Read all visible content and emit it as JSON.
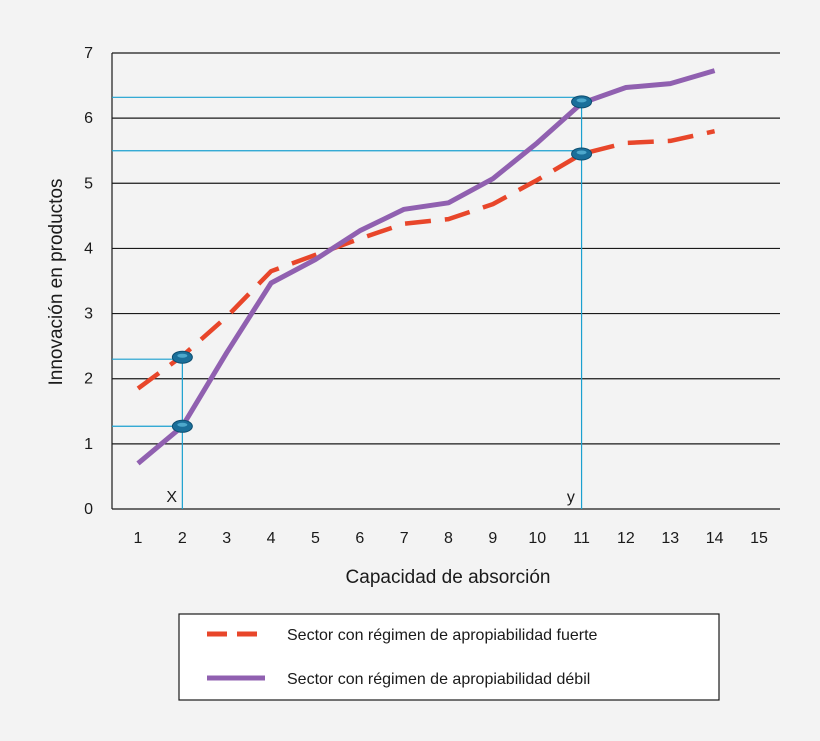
{
  "chart_data": {
    "type": "line",
    "title": "",
    "xlabel": "Capacidad de absorción",
    "ylabel": "Innovación en productos",
    "xlim": [
      0.5,
      15.5
    ],
    "ylim": [
      0,
      7
    ],
    "x_ticks": [
      1,
      2,
      3,
      4,
      5,
      6,
      7,
      8,
      9,
      10,
      11,
      12,
      13,
      14,
      15
    ],
    "y_ticks": [
      0,
      1,
      2,
      3,
      4,
      5,
      6,
      7
    ],
    "grid": "horizontal",
    "legend_position": "bottom",
    "series": [
      {
        "name": "Sector con régimen de apropiabilidad fuerte",
        "style": "dashed",
        "color": "#e8462a",
        "x": [
          1,
          2,
          3,
          4,
          5,
          6,
          7,
          8,
          9,
          10,
          11,
          12,
          13,
          14
        ],
        "y": [
          1.85,
          2.35,
          2.95,
          3.65,
          3.9,
          4.15,
          4.38,
          4.45,
          4.68,
          5.05,
          5.45,
          5.62,
          5.65,
          5.8
        ]
      },
      {
        "name": "Sector con régimen de apropiabilidad débil",
        "style": "solid",
        "color": "#9060b0",
        "x": [
          1,
          2,
          3,
          4,
          5,
          6,
          7,
          8,
          9,
          10,
          11,
          12,
          13,
          14
        ],
        "y": [
          0.7,
          1.27,
          2.4,
          3.47,
          3.83,
          4.27,
          4.6,
          4.7,
          5.07,
          5.62,
          6.23,
          6.47,
          6.53,
          6.73
        ]
      }
    ],
    "reference_lines": {
      "color": "#1aa0cf",
      "marker_color": "#1a6f9a",
      "vertical_x": [
        2,
        11
      ],
      "horizontal_y": [
        2.3,
        1.27,
        6.32,
        5.5
      ],
      "points": [
        {
          "x": 2,
          "y": 2.33
        },
        {
          "x": 2,
          "y": 1.27
        },
        {
          "x": 11,
          "y": 6.25
        },
        {
          "x": 11,
          "y": 5.45
        }
      ]
    },
    "annotations": [
      {
        "text": "X",
        "x": 1.85
      },
      {
        "text": "y",
        "x": 10.85
      }
    ]
  }
}
